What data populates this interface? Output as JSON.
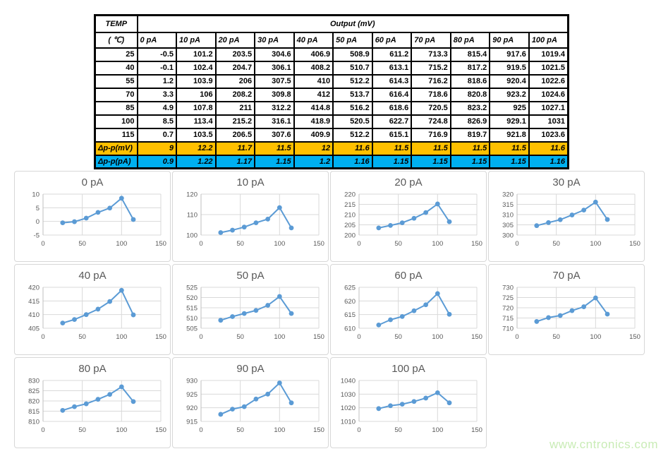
{
  "table": {
    "header": {
      "temp_label": "TEMP",
      "temp_unit": "( ℃)",
      "output_label": "Output (mV)",
      "columns": [
        "0 pA",
        "10 pA",
        "20 pA",
        "30 pA",
        "40 pA",
        "50 pA",
        "60 pA",
        "70 pA",
        "80 pA",
        "90 pA",
        "100 pA"
      ]
    },
    "rows": [
      {
        "temp": "25",
        "values": [
          "-0.5",
          "101.2",
          "203.5",
          "304.6",
          "406.9",
          "508.9",
          "611.2",
          "713.3",
          "815.4",
          "917.6",
          "1019.4"
        ]
      },
      {
        "temp": "40",
        "values": [
          "-0.1",
          "102.4",
          "204.7",
          "306.1",
          "408.2",
          "510.7",
          "613.1",
          "715.2",
          "817.2",
          "919.5",
          "1021.5"
        ]
      },
      {
        "temp": "55",
        "values": [
          "1.2",
          "103.9",
          "206",
          "307.5",
          "410",
          "512.2",
          "614.3",
          "716.2",
          "818.6",
          "920.4",
          "1022.6"
        ]
      },
      {
        "temp": "70",
        "values": [
          "3.3",
          "106",
          "208.2",
          "309.8",
          "412",
          "513.7",
          "616.4",
          "718.6",
          "820.8",
          "923.2",
          "1024.6"
        ]
      },
      {
        "temp": "85",
        "values": [
          "4.9",
          "107.8",
          "211",
          "312.2",
          "414.8",
          "516.2",
          "618.6",
          "720.5",
          "823.2",
          "925",
          "1027.1"
        ]
      },
      {
        "temp": "100",
        "values": [
          "8.5",
          "113.4",
          "215.2",
          "316.1",
          "418.9",
          "520.5",
          "622.7",
          "724.8",
          "826.9",
          "929.1",
          "1031"
        ]
      },
      {
        "temp": "115",
        "values": [
          "0.7",
          "103.5",
          "206.5",
          "307.6",
          "409.9",
          "512.2",
          "615.1",
          "716.9",
          "819.7",
          "921.8",
          "1023.6"
        ]
      }
    ],
    "delta_mv": {
      "label": "Δp-p(mV)",
      "values": [
        "9",
        "12.2",
        "11.7",
        "11.5",
        "12",
        "11.6",
        "11.5",
        "11.5",
        "11.5",
        "11.5",
        "11.6"
      ]
    },
    "delta_pa": {
      "label": "Δp-p(pA)",
      "values": [
        "0.9",
        "1.22",
        "1.17",
        "1.15",
        "1.2",
        "1.16",
        "1.15",
        "1.15",
        "1.15",
        "1.15",
        "1.16"
      ]
    }
  },
  "chart_data": [
    {
      "type": "line",
      "title": "0 pA",
      "xlabel": "",
      "ylabel": "",
      "x": [
        25,
        40,
        55,
        70,
        85,
        100,
        115
      ],
      "values": [
        -0.5,
        -0.1,
        1.2,
        3.3,
        4.9,
        8.5,
        0.7
      ],
      "xlim": [
        0,
        150
      ],
      "xticks": [
        0,
        50,
        100,
        150
      ],
      "ylim": [
        -5,
        10
      ],
      "yticks": [
        -5,
        0,
        5,
        10
      ]
    },
    {
      "type": "line",
      "title": "10 pA",
      "xlabel": "",
      "ylabel": "",
      "x": [
        25,
        40,
        55,
        70,
        85,
        100,
        115
      ],
      "values": [
        101.2,
        102.4,
        103.9,
        106,
        107.8,
        113.4,
        103.5
      ],
      "xlim": [
        0,
        150
      ],
      "xticks": [
        0,
        50,
        100,
        150
      ],
      "ylim": [
        100,
        120
      ],
      "yticks": [
        100,
        110,
        120
      ]
    },
    {
      "type": "line",
      "title": "20 pA",
      "xlabel": "",
      "ylabel": "",
      "x": [
        25,
        40,
        55,
        70,
        85,
        100,
        115
      ],
      "values": [
        203.5,
        204.7,
        206,
        208.2,
        211,
        215.2,
        206.5
      ],
      "xlim": [
        0,
        150
      ],
      "xticks": [
        0,
        50,
        100,
        150
      ],
      "ylim": [
        200,
        220
      ],
      "yticks": [
        200,
        205,
        210,
        215,
        220
      ]
    },
    {
      "type": "line",
      "title": "30 pA",
      "xlabel": "",
      "ylabel": "",
      "x": [
        25,
        40,
        55,
        70,
        85,
        100,
        115
      ],
      "values": [
        304.6,
        306.1,
        307.5,
        309.8,
        312.2,
        316.1,
        307.6
      ],
      "xlim": [
        0,
        150
      ],
      "xticks": [
        0,
        50,
        100,
        150
      ],
      "ylim": [
        300,
        320
      ],
      "yticks": [
        300,
        305,
        310,
        315,
        320
      ]
    },
    {
      "type": "line",
      "title": "40 pA",
      "xlabel": "",
      "ylabel": "",
      "x": [
        25,
        40,
        55,
        70,
        85,
        100,
        115
      ],
      "values": [
        406.9,
        408.2,
        410,
        412,
        414.8,
        418.9,
        409.9
      ],
      "xlim": [
        0,
        150
      ],
      "xticks": [
        0,
        50,
        100,
        150
      ],
      "ylim": [
        405,
        420
      ],
      "yticks": [
        405,
        410,
        415,
        420
      ]
    },
    {
      "type": "line",
      "title": "50 pA",
      "xlabel": "",
      "ylabel": "",
      "x": [
        25,
        40,
        55,
        70,
        85,
        100,
        115
      ],
      "values": [
        508.9,
        510.7,
        512.2,
        513.7,
        516.2,
        520.5,
        512.2
      ],
      "xlim": [
        0,
        150
      ],
      "xticks": [
        0,
        50,
        100,
        150
      ],
      "ylim": [
        505,
        525
      ],
      "yticks": [
        505,
        510,
        515,
        520,
        525
      ]
    },
    {
      "type": "line",
      "title": "60 pA",
      "xlabel": "",
      "ylabel": "",
      "x": [
        25,
        40,
        55,
        70,
        85,
        100,
        115
      ],
      "values": [
        611.2,
        613.1,
        614.3,
        616.4,
        618.6,
        622.7,
        615.1
      ],
      "xlim": [
        0,
        150
      ],
      "xticks": [
        0,
        50,
        100,
        150
      ],
      "ylim": [
        610,
        625
      ],
      "yticks": [
        610,
        615,
        620,
        625
      ]
    },
    {
      "type": "line",
      "title": "70 pA",
      "xlabel": "",
      "ylabel": "",
      "x": [
        25,
        40,
        55,
        70,
        85,
        100,
        115
      ],
      "values": [
        713.3,
        715.2,
        716.2,
        718.6,
        720.5,
        724.8,
        716.9
      ],
      "xlim": [
        0,
        150
      ],
      "xticks": [
        0,
        50,
        100,
        150
      ],
      "ylim": [
        710,
        730
      ],
      "yticks": [
        710,
        715,
        720,
        725,
        730
      ]
    },
    {
      "type": "line",
      "title": "80 pA",
      "xlabel": "",
      "ylabel": "",
      "x": [
        25,
        40,
        55,
        70,
        85,
        100,
        115
      ],
      "values": [
        815.4,
        817.2,
        818.6,
        820.8,
        823.2,
        826.9,
        819.7
      ],
      "xlim": [
        0,
        150
      ],
      "xticks": [
        0,
        50,
        100,
        150
      ],
      "ylim": [
        810,
        830
      ],
      "yticks": [
        810,
        815,
        820,
        825,
        830
      ]
    },
    {
      "type": "line",
      "title": "90 pA",
      "xlabel": "",
      "ylabel": "",
      "x": [
        25,
        40,
        55,
        70,
        85,
        100,
        115
      ],
      "values": [
        917.6,
        919.5,
        920.4,
        923.2,
        925,
        929.1,
        921.8
      ],
      "xlim": [
        0,
        150
      ],
      "xticks": [
        0,
        50,
        100,
        150
      ],
      "ylim": [
        915,
        930
      ],
      "yticks": [
        915,
        920,
        925,
        930
      ]
    },
    {
      "type": "line",
      "title": "100 pA",
      "xlabel": "",
      "ylabel": "",
      "x": [
        25,
        40,
        55,
        70,
        85,
        100,
        115
      ],
      "values": [
        1019.4,
        1021.5,
        1022.6,
        1024.6,
        1027.1,
        1031,
        1023.6
      ],
      "xlim": [
        0,
        150
      ],
      "xticks": [
        0,
        50,
        100,
        150
      ],
      "ylim": [
        1010,
        1040
      ],
      "yticks": [
        1010,
        1020,
        1030,
        1040
      ]
    }
  ],
  "watermark": "www.cntronics.com",
  "colors": {
    "line": "#5b9bd5",
    "marker": "#5b9bd5",
    "grid": "#d9d9d9",
    "axis": "#bfbfbf",
    "axis_text": "#595959",
    "delta_mv_bg": "#ffc000",
    "delta_pa_bg": "#00b0f0",
    "table_border": "#000000",
    "watermark": "#c9ecb6"
  }
}
